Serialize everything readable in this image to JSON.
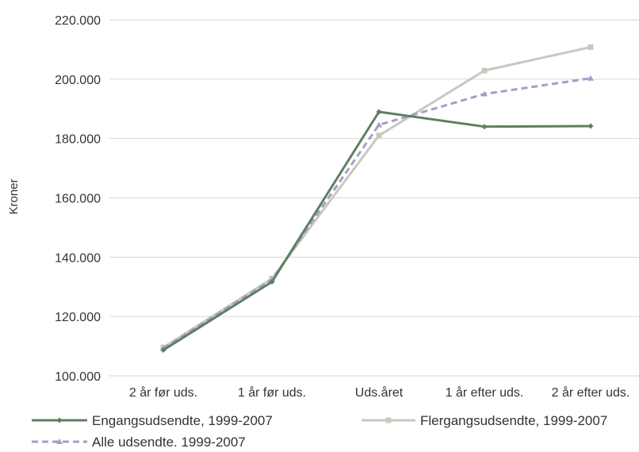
{
  "chart_data": {
    "type": "line",
    "ylabel": "Kroner",
    "ylim": [
      100000,
      220000
    ],
    "yticks": [
      100000,
      120000,
      140000,
      160000,
      180000,
      200000,
      220000
    ],
    "ytick_labels": [
      "100.000",
      "120.000",
      "140.000",
      "160.000",
      "180.000",
      "200.000",
      "220.000"
    ],
    "categories": [
      "2 år før uds.",
      "1 år før uds.",
      "Uds.året",
      "1 år efter uds.",
      "2 år efter uds."
    ],
    "grid": "horizontal",
    "legend_position": "bottom",
    "series": [
      {
        "name": "Engangsudsendte, 1999-2007",
        "values": [
          108700,
          131700,
          189000,
          184000,
          184200
        ],
        "color": "#5e7f60",
        "style": "solid",
        "marker": "diamond"
      },
      {
        "name": "Flergangsudsendte, 1999-2007",
        "values": [
          109600,
          132800,
          181000,
          202900,
          210800
        ],
        "color": "#c9c8be",
        "style": "solid",
        "marker": "square"
      },
      {
        "name": "Alle udsendte. 1999-2007",
        "values": [
          109300,
          132400,
          184600,
          195000,
          200300
        ],
        "color": "#a89dc4",
        "style": "dashed",
        "marker": "triangle"
      }
    ]
  }
}
